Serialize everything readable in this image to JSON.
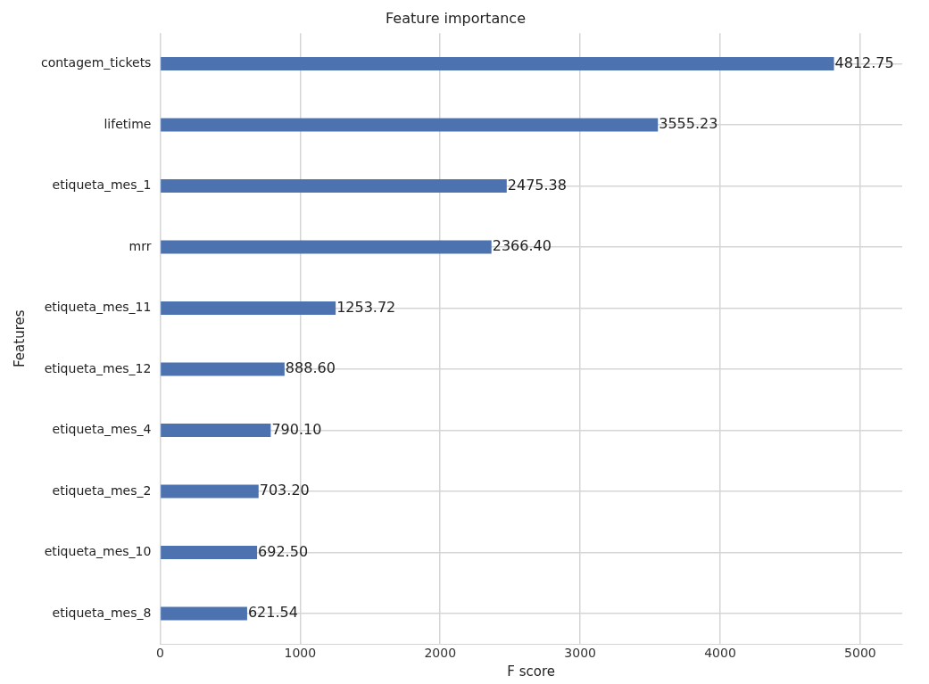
{
  "chart_data": {
    "type": "bar",
    "orientation": "horizontal",
    "title": "Feature importance",
    "xlabel": "F score",
    "ylabel": "Features",
    "categories": [
      "contagem_tickets",
      "lifetime",
      "etiqueta_mes_1",
      "mrr",
      "etiqueta_mes_11",
      "etiqueta_mes_12",
      "etiqueta_mes_4",
      "etiqueta_mes_2",
      "etiqueta_mes_10",
      "etiqueta_mes_8"
    ],
    "values": [
      4812.75,
      3555.23,
      2475.38,
      2366.4,
      1253.72,
      888.6,
      790.1,
      703.2,
      692.5,
      621.54
    ],
    "value_labels": [
      "4812.75",
      "3555.23",
      "2475.38",
      "2366.40",
      "1253.72",
      "888.60",
      "790.10",
      "703.20",
      "692.50",
      "621.54"
    ],
    "color": "#4c72b0",
    "xlim": [
      0,
      5300
    ],
    "xticks": [
      0,
      1000,
      2000,
      3000,
      4000,
      5000
    ],
    "grid": true
  }
}
